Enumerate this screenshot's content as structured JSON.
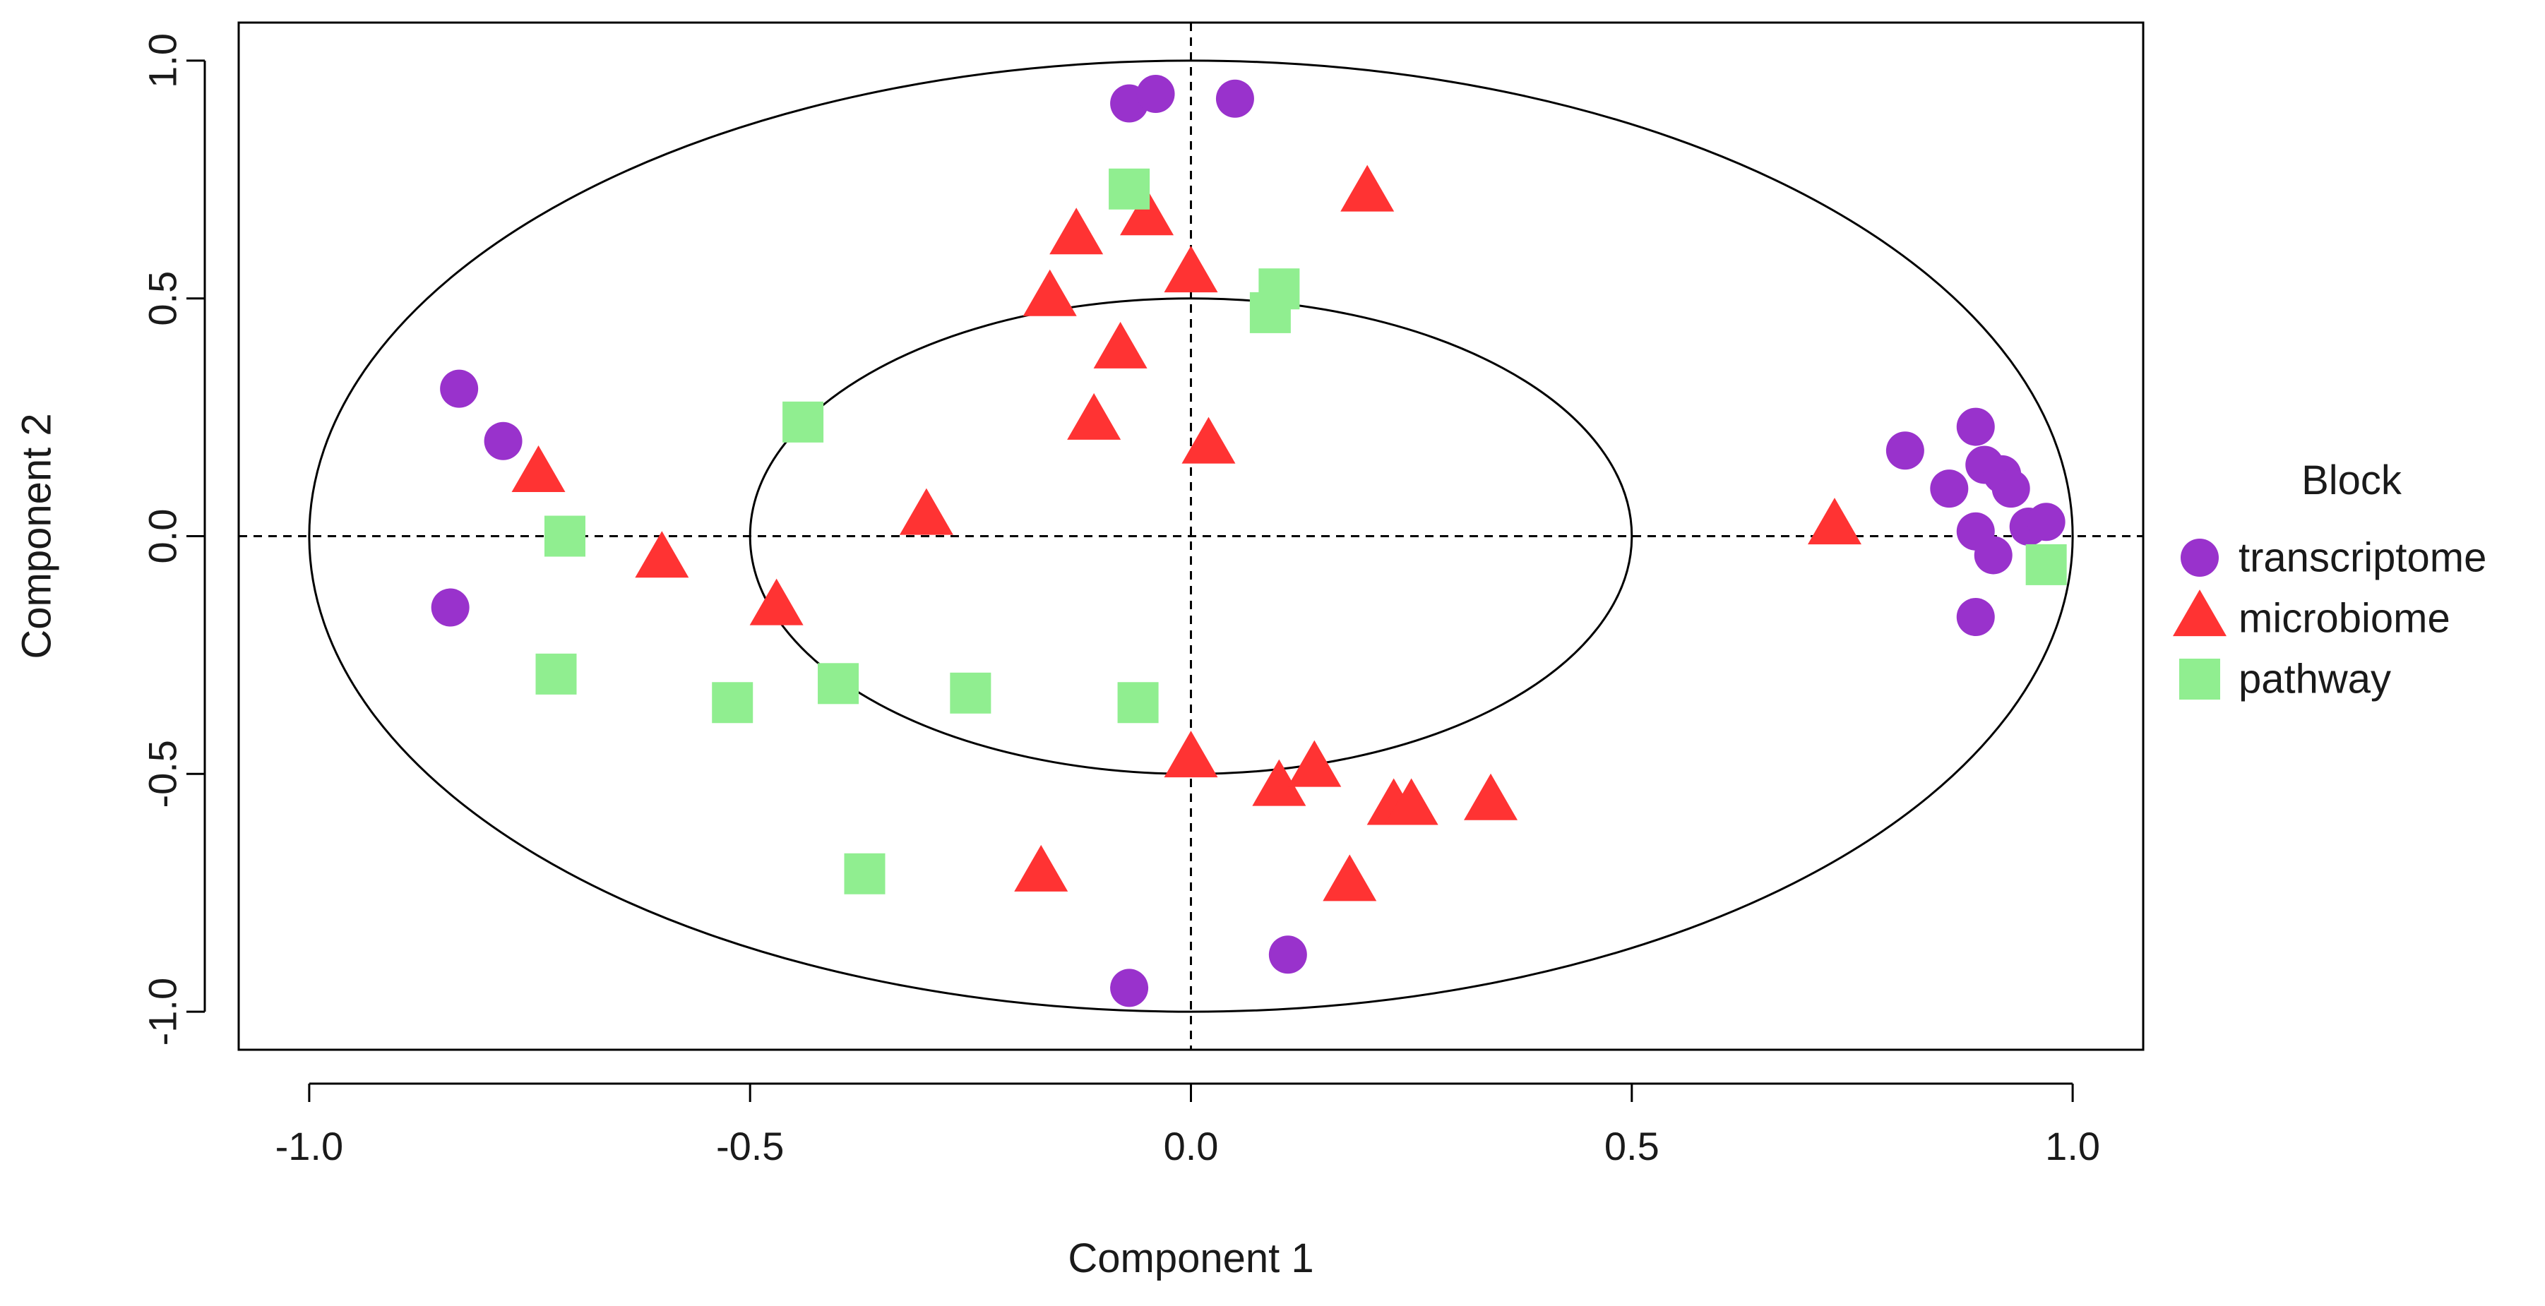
{
  "chart_data": {
    "type": "scatter",
    "title": "",
    "xlabel": "Component 1",
    "ylabel": "Component 2",
    "xlim": [
      -1.08,
      1.08
    ],
    "ylim": [
      -1.08,
      1.08
    ],
    "x_ticks": [
      -1.0,
      -0.5,
      0.0,
      0.5,
      1.0
    ],
    "y_ticks": [
      -1.0,
      -0.5,
      0.0,
      0.5,
      1.0
    ],
    "x_tick_labels": [
      "-1.0",
      "-0.5",
      "0.0",
      "0.5",
      "1.0"
    ],
    "y_tick_labels": [
      "-1.0",
      "-0.5",
      "0.0",
      "0.5",
      "1.0"
    ],
    "circles": [
      1.0,
      0.5
    ],
    "reference_lines": {
      "x": 0,
      "y": 0,
      "style": "dashed"
    },
    "legend": {
      "title": "Block",
      "position": "right"
    },
    "series": [
      {
        "name": "transcriptome",
        "marker": "circle",
        "color": "#9932CC",
        "points": [
          [
            -0.07,
            0.91
          ],
          [
            -0.04,
            0.93
          ],
          [
            0.05,
            0.92
          ],
          [
            -0.83,
            0.31
          ],
          [
            -0.78,
            0.2
          ],
          [
            -0.84,
            -0.15
          ],
          [
            0.81,
            0.18
          ],
          [
            0.89,
            0.23
          ],
          [
            0.86,
            0.1
          ],
          [
            0.9,
            0.15
          ],
          [
            0.92,
            0.13
          ],
          [
            0.93,
            0.1
          ],
          [
            0.89,
            0.01
          ],
          [
            0.95,
            0.02
          ],
          [
            0.97,
            0.03
          ],
          [
            0.91,
            -0.04
          ],
          [
            0.89,
            -0.17
          ],
          [
            0.11,
            -0.88
          ],
          [
            -0.07,
            -0.95
          ]
        ]
      },
      {
        "name": "microbiome",
        "marker": "triangle",
        "color": "#FF3333",
        "points": [
          [
            -0.13,
            0.63
          ],
          [
            -0.05,
            0.67
          ],
          [
            0.2,
            0.72
          ],
          [
            -0.16,
            0.5
          ],
          [
            0.0,
            0.55
          ],
          [
            -0.08,
            0.39
          ],
          [
            -0.11,
            0.24
          ],
          [
            0.02,
            0.19
          ],
          [
            -0.3,
            0.04
          ],
          [
            -0.74,
            0.13
          ],
          [
            -0.6,
            -0.05
          ],
          [
            -0.47,
            -0.15
          ],
          [
            0.73,
            0.02
          ],
          [
            0.0,
            -0.47
          ],
          [
            0.1,
            -0.53
          ],
          [
            0.14,
            -0.49
          ],
          [
            0.23,
            -0.57
          ],
          [
            0.25,
            -0.57
          ],
          [
            0.34,
            -0.56
          ],
          [
            -0.17,
            -0.71
          ],
          [
            0.18,
            -0.73
          ]
        ]
      },
      {
        "name": "pathway",
        "marker": "square",
        "color": "#90EE90",
        "points": [
          [
            -0.07,
            0.73
          ],
          [
            0.1,
            0.52
          ],
          [
            0.09,
            0.47
          ],
          [
            -0.44,
            0.24
          ],
          [
            -0.71,
            0.0
          ],
          [
            0.97,
            -0.06
          ],
          [
            -0.72,
            -0.29
          ],
          [
            -0.52,
            -0.35
          ],
          [
            -0.4,
            -0.31
          ],
          [
            -0.25,
            -0.33
          ],
          [
            -0.06,
            -0.35
          ],
          [
            -0.37,
            -0.71
          ]
        ]
      }
    ]
  }
}
